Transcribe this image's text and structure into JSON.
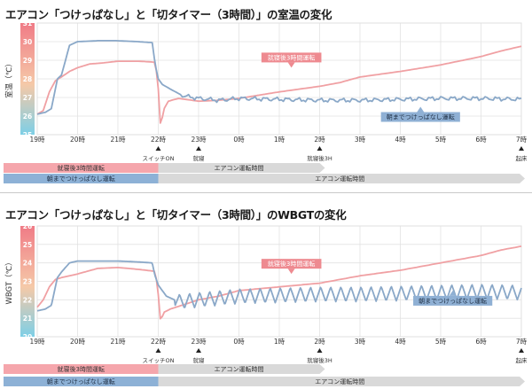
{
  "colors": {
    "series_3h": "#f0a0a3",
    "series_all": "#8aa8c8",
    "label_3h": "#ee8a90",
    "label_all": "#8fb0d4",
    "bar_pink": "#f5a6ac",
    "bar_blue": "#8db1d6",
    "bar_grey": "#d9d9d9",
    "grid": "#e2e2e2"
  },
  "x_axis": {
    "ticks": [
      "19時",
      "20時",
      "21時",
      "22時",
      "23時",
      "0時",
      "1時",
      "2時",
      "3時",
      "4時",
      "5時",
      "6時",
      "7時"
    ],
    "events": [
      {
        "hour": 22,
        "label": "スイッチON"
      },
      {
        "hour": 23,
        "label": "就寝"
      },
      {
        "hour": 26,
        "label": "就寝後3H"
      },
      {
        "hour": 31,
        "label": "起床"
      }
    ]
  },
  "schedule_bars": {
    "bar_3h_label": "就寝後3時間運転",
    "bar_all_label": "朝までつけっぱなし運転",
    "run_label": "エアコン運転時間"
  },
  "chart_data": [
    {
      "type": "line",
      "title": "エアコン「つけっぱなし」と「切タイマー（3時間）」の室温の変化",
      "ylabel": "室温（℃）",
      "ylim": [
        25,
        31
      ],
      "yticks": [
        25,
        26,
        27,
        28,
        29,
        30,
        31
      ],
      "x_range": [
        19,
        31
      ],
      "series": [
        {
          "name": "就寝後3時間運転",
          "x": [
            19,
            19.15,
            19.3,
            19.45,
            19.6,
            19.8,
            20.0,
            20.3,
            20.6,
            21.0,
            21.5,
            21.9,
            21.97,
            22.02,
            22.06,
            22.12,
            22.25,
            22.5,
            23.0,
            23.5,
            24.0,
            25.0,
            26.0,
            26.5,
            27.0,
            28.0,
            29.0,
            30.0,
            30.5,
            31.0
          ],
          "values": [
            26.1,
            26.3,
            27.3,
            27.9,
            28.1,
            28.4,
            28.6,
            28.8,
            28.85,
            28.95,
            28.95,
            28.9,
            28.3,
            26.9,
            25.2,
            26.3,
            26.8,
            26.95,
            26.8,
            26.85,
            26.95,
            27.3,
            27.6,
            27.8,
            28.1,
            28.4,
            28.75,
            29.2,
            29.5,
            29.75
          ]
        },
        {
          "name": "朝までつけっぱなし運転",
          "x": [
            19,
            19.2,
            19.35,
            19.5,
            19.6,
            19.8,
            20.0,
            20.5,
            21.0,
            21.5,
            21.85,
            21.92,
            22.0,
            22.1,
            22.3,
            22.6,
            23.0,
            23.5,
            24.0,
            25.0,
            26.0,
            27.0,
            28.0,
            29.0,
            30.0,
            31.0
          ],
          "values": [
            26.1,
            26.2,
            26.4,
            28.0,
            28.2,
            29.8,
            30.0,
            30.05,
            30.05,
            30.0,
            29.95,
            28.8,
            28.0,
            27.7,
            27.45,
            27.1,
            26.95,
            26.85,
            26.95,
            26.9,
            26.85,
            26.85,
            26.9,
            26.95,
            26.95,
            26.9
          ]
        }
      ],
      "annotations": {
        "3h_label": "就寝後3時間運転",
        "all_label": "朝までつけっぱなし運転",
        "3h_anchor": [
          25.3,
          28.6
        ],
        "all_anchor": [
          28.5,
          26.5
        ]
      }
    },
    {
      "type": "line",
      "title": "エアコン「つけっぱなし」と「切タイマー（3時間）」のWBGTの変化",
      "ylabel": "WBGT（℃）",
      "ylim": [
        20,
        26
      ],
      "yticks": [
        20,
        21,
        22,
        23,
        24,
        25,
        26
      ],
      "x_range": [
        19,
        31
      ],
      "series": [
        {
          "name": "就寝後3時間運転",
          "x": [
            19,
            19.15,
            19.3,
            19.45,
            19.6,
            19.8,
            20.0,
            20.5,
            21.0,
            21.5,
            21.9,
            21.97,
            22.02,
            22.06,
            22.12,
            22.3,
            23.0,
            23.5,
            24.0,
            25.0,
            26.0,
            26.5,
            27.0,
            28.0,
            29.0,
            30.0,
            30.5,
            31.0
          ],
          "values": [
            21.6,
            22.0,
            22.7,
            23.1,
            23.2,
            23.3,
            23.4,
            23.7,
            23.75,
            23.65,
            23.55,
            23.0,
            21.8,
            20.7,
            21.3,
            21.5,
            22.0,
            22.2,
            22.5,
            22.7,
            22.9,
            23.1,
            23.3,
            23.6,
            24.0,
            24.4,
            24.7,
            24.9
          ]
        },
        {
          "name": "朝までつけっぱなし運転",
          "x": [
            19,
            19.2,
            19.35,
            19.5,
            19.6,
            19.8,
            20.0,
            20.5,
            21.0,
            21.5,
            21.85,
            21.92,
            22.0,
            22.2,
            22.5,
            23.0,
            23.5,
            24.0,
            25.0,
            26.0,
            27.0,
            28.0,
            29.0,
            30.0,
            31.0
          ],
          "values": [
            21.4,
            21.5,
            21.7,
            23.2,
            23.5,
            24.0,
            24.1,
            24.1,
            24.1,
            24.05,
            24.0,
            23.3,
            22.8,
            22.2,
            21.9,
            22.0,
            22.1,
            22.2,
            22.25,
            22.3,
            22.3,
            22.35,
            22.4,
            22.45,
            22.4
          ],
          "oscillation": {
            "start_hour": 22.4,
            "period_hours": 0.25,
            "amplitude": 0.4
          }
        }
      ],
      "annotations": {
        "3h_label": "就寝後3時間運転",
        "all_label": "朝までつけっぱなし運転",
        "3h_anchor": [
          25.3,
          23.4
        ],
        "all_anchor": [
          29.3,
          22.5
        ]
      }
    }
  ]
}
